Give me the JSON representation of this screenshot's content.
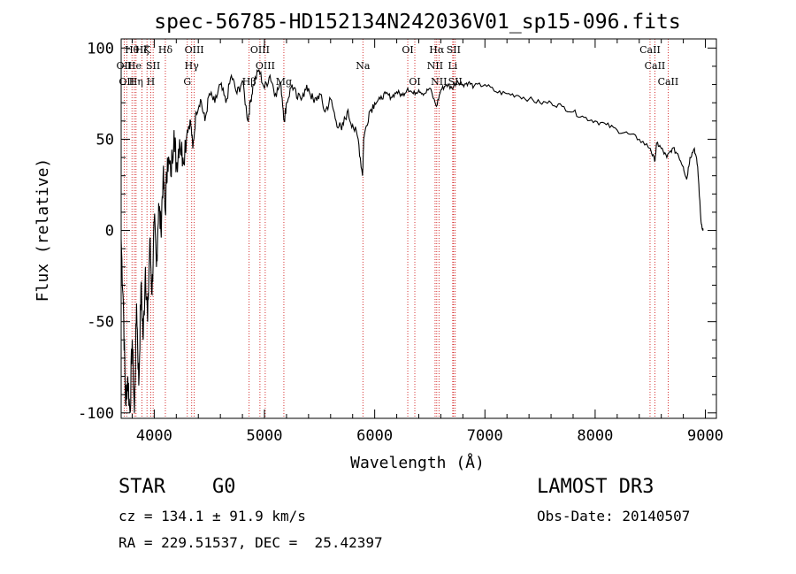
{
  "chart_data": {
    "type": "line",
    "title": "spec-56785-HD152134N242036V01_sp15-096.fits",
    "xlabel": "Wavelength (Å)",
    "ylabel": "Flux (relative)",
    "xlim": [
      3700,
      9100
    ],
    "ylim": [
      -103,
      105
    ],
    "xticks": [
      4000,
      5000,
      6000,
      7000,
      8000,
      9000
    ],
    "yticks": [
      -100,
      -50,
      0,
      50,
      100
    ],
    "xtick_labels": [
      "4000",
      "5000",
      "6000",
      "7000",
      "8000",
      "9000"
    ],
    "ytick_labels": [
      "-100",
      "-50",
      "0",
      "50",
      "100"
    ],
    "series": [
      {
        "color": "#000000",
        "points": [
          [
            3700,
            -5
          ],
          [
            3720,
            -40
          ],
          [
            3740,
            -95
          ],
          [
            3760,
            -80
          ],
          [
            3780,
            -100
          ],
          [
            3800,
            -60
          ],
          [
            3820,
            -100
          ],
          [
            3840,
            -40
          ],
          [
            3860,
            -85
          ],
          [
            3880,
            -30
          ],
          [
            3900,
            -60
          ],
          [
            3920,
            -20
          ],
          [
            3940,
            -50
          ],
          [
            3960,
            -5
          ],
          [
            3980,
            -35
          ],
          [
            4000,
            5
          ],
          [
            4020,
            -20
          ],
          [
            4040,
            15
          ],
          [
            4060,
            0
          ],
          [
            4080,
            30
          ],
          [
            4100,
            10
          ],
          [
            4120,
            40
          ],
          [
            4150,
            30
          ],
          [
            4180,
            55
          ],
          [
            4200,
            35
          ],
          [
            4230,
            50
          ],
          [
            4260,
            40
          ],
          [
            4300,
            55
          ],
          [
            4330,
            60
          ],
          [
            4350,
            45
          ],
          [
            4380,
            65
          ],
          [
            4420,
            72
          ],
          [
            4460,
            60
          ],
          [
            4500,
            75
          ],
          [
            4550,
            70
          ],
          [
            4600,
            80
          ],
          [
            4650,
            70
          ],
          [
            4700,
            85
          ],
          [
            4750,
            75
          ],
          [
            4800,
            82
          ],
          [
            4850,
            60
          ],
          [
            4870,
            70
          ],
          [
            4900,
            80
          ],
          [
            4950,
            88
          ],
          [
            5000,
            78
          ],
          [
            5050,
            85
          ],
          [
            5100,
            75
          ],
          [
            5150,
            80
          ],
          [
            5180,
            60
          ],
          [
            5200,
            70
          ],
          [
            5250,
            80
          ],
          [
            5300,
            72
          ],
          [
            5350,
            75
          ],
          [
            5400,
            78
          ],
          [
            5450,
            70
          ],
          [
            5500,
            75
          ],
          [
            5550,
            65
          ],
          [
            5600,
            72
          ],
          [
            5650,
            60
          ],
          [
            5700,
            55
          ],
          [
            5750,
            65
          ],
          [
            5800,
            58
          ],
          [
            5850,
            50
          ],
          [
            5890,
            30
          ],
          [
            5900,
            50
          ],
          [
            5950,
            65
          ],
          [
            6000,
            70
          ],
          [
            6050,
            72
          ],
          [
            6100,
            75
          ],
          [
            6150,
            73
          ],
          [
            6200,
            76
          ],
          [
            6250,
            74
          ],
          [
            6300,
            78
          ],
          [
            6350,
            75
          ],
          [
            6400,
            77
          ],
          [
            6450,
            75
          ],
          [
            6500,
            78
          ],
          [
            6560,
            68
          ],
          [
            6600,
            77
          ],
          [
            6650,
            80
          ],
          [
            6700,
            78
          ],
          [
            6750,
            82
          ],
          [
            6800,
            80
          ],
          [
            6850,
            81
          ],
          [
            6900,
            79
          ],
          [
            7000,
            80
          ],
          [
            7100,
            76
          ],
          [
            7200,
            75
          ],
          [
            7300,
            74
          ],
          [
            7400,
            72
          ],
          [
            7500,
            70
          ],
          [
            7600,
            70
          ],
          [
            7700,
            68
          ],
          [
            7800,
            65
          ],
          [
            7900,
            62
          ],
          [
            8000,
            60
          ],
          [
            8100,
            58
          ],
          [
            8200,
            55
          ],
          [
            8300,
            53
          ],
          [
            8400,
            50
          ],
          [
            8500,
            45
          ],
          [
            8540,
            38
          ],
          [
            8560,
            48
          ],
          [
            8600,
            45
          ],
          [
            8650,
            40
          ],
          [
            8700,
            45
          ],
          [
            8750,
            42
          ],
          [
            8800,
            35
          ],
          [
            8830,
            28
          ],
          [
            8860,
            40
          ],
          [
            8900,
            45
          ],
          [
            8930,
            35
          ],
          [
            8960,
            5
          ],
          [
            8980,
            0
          ]
        ]
      }
    ],
    "line_marker_color": "#cc0000",
    "spectral_lines": [
      {
        "wl": 3727,
        "label": "OII",
        "row": 2
      },
      {
        "wl": 3750,
        "label": "OII",
        "row": 3
      },
      {
        "wl": 3798,
        "label": "Hθ",
        "row": 1
      },
      {
        "wl": 3820,
        "label": "He",
        "row": 2
      },
      {
        "wl": 3835,
        "label": "Hη",
        "row": 3
      },
      {
        "wl": 3889,
        "label": "Hζ",
        "row": 1
      },
      {
        "wl": 3934,
        "label": "K",
        "row": 1
      },
      {
        "wl": 3968,
        "label": "H",
        "row": 3
      },
      {
        "wl": 3990,
        "label": "SII",
        "row": 2
      },
      {
        "wl": 4101,
        "label": "Hδ",
        "row": 1
      },
      {
        "wl": 4300,
        "label": "G",
        "row": 3
      },
      {
        "wl": 4340,
        "label": "Hγ",
        "row": 2
      },
      {
        "wl": 4363,
        "label": "OIII",
        "row": 1
      },
      {
        "wl": 4861,
        "label": "Hβ",
        "row": 3
      },
      {
        "wl": 4959,
        "label": "OIII",
        "row": 1
      },
      {
        "wl": 5007,
        "label": "OIII",
        "row": 2
      },
      {
        "wl": 5176,
        "label": "Mg",
        "row": 3
      },
      {
        "wl": 5893,
        "label": "Na",
        "row": 2
      },
      {
        "wl": 6300,
        "label": "OI",
        "row": 1
      },
      {
        "wl": 6364,
        "label": "OI",
        "row": 3
      },
      {
        "wl": 6548,
        "label": "NII",
        "row": 2
      },
      {
        "wl": 6563,
        "label": "Hα",
        "row": 1
      },
      {
        "wl": 6583,
        "label": "NII",
        "row": 3
      },
      {
        "wl": 6716,
        "label": "SII",
        "row": 1
      },
      {
        "wl": 6708,
        "label": "Li",
        "row": 2
      },
      {
        "wl": 6731,
        "label": "SII",
        "row": 3
      },
      {
        "wl": 8498,
        "label": "CaII",
        "row": 1
      },
      {
        "wl": 8542,
        "label": "CaII",
        "row": 2
      },
      {
        "wl": 8662,
        "label": "CaII",
        "row": 3
      }
    ]
  },
  "info": {
    "class": "STAR    G0",
    "survey": "LAMOST DR3",
    "cz": "cz = 134.1 ± 91.9 km/s",
    "obs_date": "Obs-Date: 20140507",
    "coords": "RA = 229.51537, DEC =  25.42397"
  }
}
